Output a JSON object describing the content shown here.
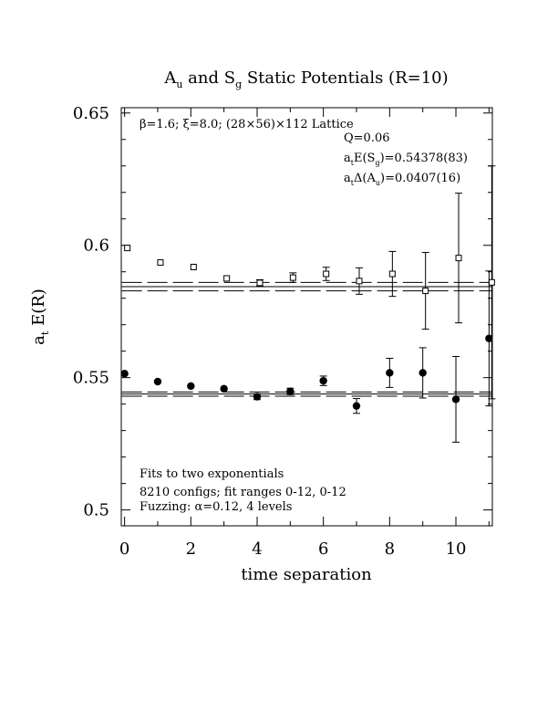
{
  "chart_data": {
    "type": "scatter",
    "title": {
      "pre": "A",
      "sub1": "u",
      "mid": " and S",
      "sub2": "g",
      "post": " Static Potentials (R=10)"
    },
    "xlabel": "time separation",
    "ylabel": {
      "pre": "a",
      "sub": "t",
      "post": " E(R)"
    },
    "xlim": [
      -0.1,
      11.1
    ],
    "ylim": [
      0.494,
      0.652
    ],
    "x_ticks": [
      0,
      2,
      4,
      6,
      8,
      10
    ],
    "y_ticks": [
      0.5,
      0.55,
      0.6,
      0.65
    ],
    "grid": false,
    "info": {
      "lattice": "β=1.6; ξ=8.0; (28×56)×112 Lattice",
      "q": "Q=0.06",
      "energy": {
        "pre": "a",
        "sub1": "t",
        "mid": "E(S",
        "sub2": "g",
        "post": ")=0.54378(83)"
      },
      "gap": {
        "pre": "a",
        "sub1": "t",
        "mid": "Δ(A",
        "sub2": "u",
        "post": ")=0.0407(16)"
      }
    },
    "notes": [
      "Fits to two exponentials",
      "8210 configs; fit ranges 0-12, 0-12",
      "Fuzzing: α=0.12, 4 levels"
    ],
    "series": [
      {
        "marker": "open-square",
        "x": [
          0,
          1,
          2,
          3,
          4,
          5,
          6,
          7,
          8,
          9,
          10,
          11
        ],
        "y": [
          0.599,
          0.5935,
          0.5918,
          0.5875,
          0.5858,
          0.5878,
          0.5892,
          0.5865,
          0.5892,
          0.5828,
          0.5952,
          0.586
        ],
        "err": [
          0.0008,
          0.0008,
          0.0009,
          0.001,
          0.0012,
          0.0018,
          0.0025,
          0.005,
          0.0085,
          0.0145,
          0.0245,
          0.044
        ]
      },
      {
        "marker": "filled-circle",
        "x": [
          0,
          1,
          2,
          3,
          4,
          5,
          6,
          7,
          8,
          9,
          10,
          11
        ],
        "y": [
          0.5515,
          0.5485,
          0.5468,
          0.5458,
          0.5428,
          0.5448,
          0.5488,
          0.5393,
          0.5518,
          0.5518,
          0.5418,
          0.5648
        ],
        "err": [
          0.0008,
          0.0008,
          0.0009,
          0.001,
          0.0011,
          0.0012,
          0.0018,
          0.0028,
          0.0055,
          0.0095,
          0.0162,
          0.0255
        ]
      }
    ],
    "fit_bands": [
      {
        "center": 0.5844,
        "low": 0.5828,
        "high": 0.586,
        "x_range": [
          0,
          11
        ]
      },
      {
        "center": 0.5438,
        "low": 0.543,
        "high": 0.5446,
        "x_range": [
          0,
          11
        ]
      }
    ]
  }
}
